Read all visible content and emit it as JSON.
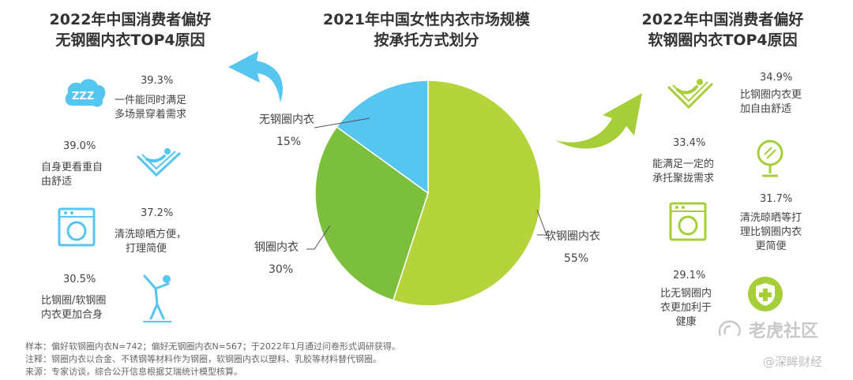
{
  "left_panel": {
    "title_line1": "2022年中国消费者偏好",
    "title_line2": "无钢圈内衣TOP4原因",
    "items": [
      {
        "pct": "39.3%",
        "line1": "一件能同时满足",
        "line2": "多场景穿着需求",
        "icon": "sleep-zzz-icon"
      },
      {
        "pct": "39.0%",
        "line1": "自身更看重自",
        "line2": "由舒适",
        "icon": "reclining-comfort-icon"
      },
      {
        "pct": "37.2%",
        "line1": "清洗晾晒方便，",
        "line2": "打理简便",
        "icon": "washing-machine-icon"
      },
      {
        "pct": "30.5%",
        "line1": "比钢圈/软钢圈",
        "line2": "内衣更加合身",
        "icon": "stretching-person-icon"
      }
    ]
  },
  "right_panel": {
    "title_line1": "2022年中国消费者偏好",
    "title_line2": "软钢圈内衣TOP4原因",
    "items": [
      {
        "pct": "34.9%",
        "line1": "比钢圈内衣更",
        "line2": "加自由舒适",
        "line3": "",
        "icon": "reclining-comfort-icon"
      },
      {
        "pct": "33.4%",
        "line1": "能满足一定的",
        "line2": "承托聚拢需求",
        "line3": "",
        "icon": "mirror-icon"
      },
      {
        "pct": "31.7%",
        "line1": "清洗晾晒等打",
        "line2": "理比钢圈内衣",
        "line3": "更简便",
        "icon": "washing-machine-icon"
      },
      {
        "pct": "29.1%",
        "line1": "比无钢圈内",
        "line2": "衣更加利于",
        "line3": "健康",
        "icon": "health-cross-icon"
      }
    ]
  },
  "chart_data": {
    "type": "pie",
    "title": "2021年中国女性内衣市场规模按承托方式划分",
    "title_line1": "2021年中国女性内衣市场规模",
    "title_line2": "按承托方式划分",
    "slices": [
      {
        "name": "软钢圈内衣",
        "value": 55,
        "label": "55%",
        "color": "#b5d43b"
      },
      {
        "name": "钢圈内衣",
        "value": 30,
        "label": "30%",
        "color": "#7cbf3c"
      },
      {
        "name": "无钢圈内衣",
        "value": 15,
        "label": "15%",
        "color": "#56c5ef"
      }
    ],
    "start": "12 o'clock",
    "direction": "clockwise"
  },
  "footnotes": {
    "sample": "样本：偏好软钢圈内衣N=742；偏好无钢圈内衣N=567；于2022年1月通过问卷形式调研获得。",
    "note": "注释：钢圈内衣以合金、不锈钢等材料作为钢圈，软钢圈内衣以塑料、乳胶等材料替代钢圈。",
    "source": "来源：专家访谈，综合公开信息根据艾瑞统计模型核算。"
  },
  "watermark": {
    "main": "老虎社区",
    "sub": "@深眸财经"
  },
  "colors": {
    "cyan": "#56c5ef",
    "green": "#7cbf3c",
    "lime": "#b5d43b"
  }
}
